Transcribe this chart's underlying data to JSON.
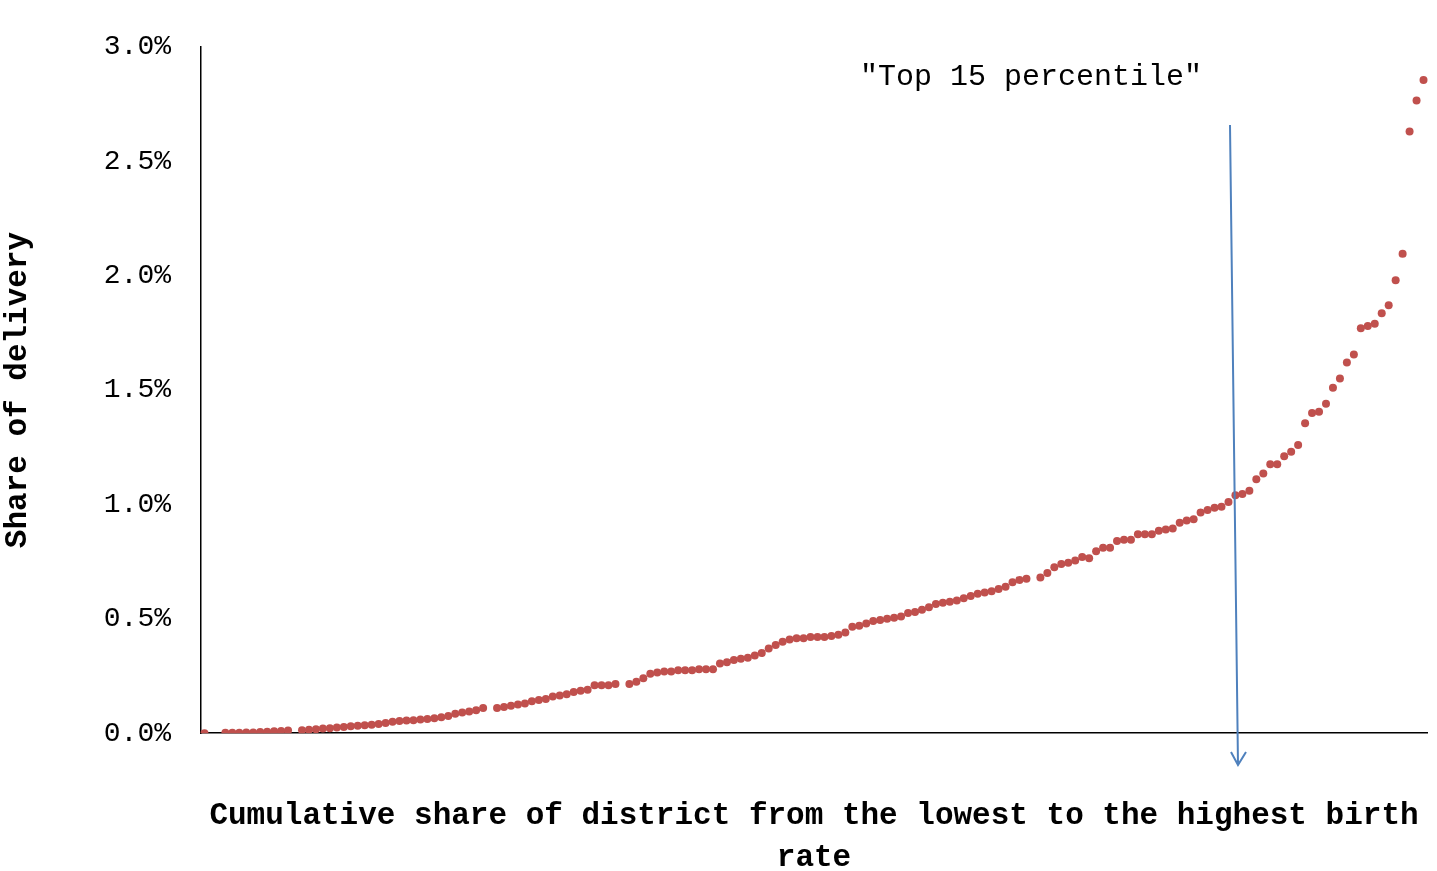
{
  "chart_data": {
    "type": "scatter",
    "xlabel": "Cumulative share of district from the lowest to the highest birth rate",
    "ylabel": "Share of delivery",
    "annotations": [
      "\"Top 15 percentile\""
    ],
    "categories": [
      null,
      null,
      null,
      null,
      null,
      null,
      null,
      null,
      null,
      null,
      null,
      null,
      null,
      null,
      null,
      null,
      null,
      null,
      null,
      null,
      null,
      null,
      null,
      null,
      null,
      null,
      null,
      null,
      null,
      null,
      null,
      null,
      null,
      null,
      null,
      null,
      null,
      null,
      null,
      null,
      null,
      null,
      null,
      null,
      null,
      null,
      null,
      null,
      null,
      null,
      null,
      null,
      null,
      null,
      null,
      null,
      null,
      null,
      null,
      null,
      null,
      null,
      null,
      null,
      null,
      null,
      null,
      null,
      null,
      null,
      null,
      null,
      null,
      null,
      null,
      null,
      null,
      null,
      null,
      null,
      null,
      null,
      null,
      null,
      null,
      null,
      null,
      null,
      null,
      null,
      null,
      null,
      null,
      null,
      null,
      null,
      null,
      null,
      null,
      null,
      null,
      null,
      null,
      null,
      null,
      null,
      null,
      null,
      null,
      null,
      null,
      null,
      null,
      null,
      null,
      null,
      null,
      null,
      null,
      null,
      null,
      null,
      null,
      null,
      null,
      null,
      null,
      null,
      null,
      null,
      null,
      null,
      null,
      null,
      null,
      null,
      null,
      null,
      null,
      null,
      null,
      null,
      null,
      null,
      null,
      null,
      null,
      null,
      null,
      null,
      null,
      null,
      null,
      null,
      null,
      null,
      null,
      null,
      null,
      null,
      null,
      null,
      null,
      null,
      null,
      null,
      null,
      null,
      null,
      null,
      null,
      null,
      null,
      null,
      null,
      null
    ],
    "series": [
      {
        "color": "#c0504d",
        "values": [
          0,
          null,
          null,
          0.002,
          0.002,
          0.002,
          0.003,
          0.003,
          0.005,
          0.006,
          0.008,
          0.01,
          0.012,
          null,
          0.013,
          0.015,
          0.017,
          0.02,
          0.022,
          0.025,
          0.027,
          0.03,
          0.033,
          0.035,
          0.037,
          0.04,
          0.045,
          0.05,
          0.053,
          0.055,
          0.057,
          0.06,
          0.062,
          0.065,
          0.07,
          0.075,
          0.085,
          0.09,
          0.095,
          0.1,
          0.11,
          null,
          0.11,
          0.115,
          0.12,
          0.125,
          0.13,
          0.14,
          0.145,
          0.15,
          0.16,
          0.165,
          0.17,
          0.18,
          0.185,
          0.19,
          0.21,
          0.21,
          0.21,
          0.215,
          null,
          0.215,
          0.225,
          0.24,
          0.26,
          0.265,
          0.27,
          0.27,
          0.275,
          0.275,
          0.275,
          0.28,
          0.28,
          0.28,
          0.305,
          0.31,
          0.32,
          0.325,
          0.33,
          0.34,
          0.35,
          0.37,
          0.385,
          0.4,
          0.41,
          0.415,
          0.415,
          0.42,
          0.42,
          0.42,
          0.425,
          0.43,
          0.44,
          0.465,
          0.47,
          0.48,
          0.49,
          0.495,
          0.5,
          0.505,
          0.51,
          0.525,
          0.53,
          0.54,
          0.55,
          0.565,
          0.57,
          0.575,
          0.58,
          0.59,
          0.6,
          0.61,
          0.615,
          0.62,
          0.63,
          0.64,
          0.66,
          0.67,
          0.675,
          null,
          0.68,
          0.7,
          0.725,
          0.74,
          0.745,
          0.755,
          0.77,
          0.765,
          0.795,
          0.81,
          0.81,
          0.84,
          0.845,
          0.845,
          0.87,
          0.87,
          0.87,
          0.885,
          0.89,
          0.895,
          0.92,
          0.93,
          0.935,
          0.965,
          0.975,
          0.985,
          0.99,
          1.01,
          1.04,
          1.045,
          1.06,
          1.11,
          1.135,
          1.175,
          1.175,
          1.21,
          1.23,
          1.26,
          1.355,
          1.4,
          1.405,
          1.44,
          1.51,
          1.55,
          1.62,
          1.655,
          1.77,
          1.78,
          1.79,
          1.835,
          1.87,
          1.98,
          2.095,
          2.63,
          2.765,
          2.855
        ]
      }
    ],
    "ylim": [
      0,
      3
    ],
    "yticks": [
      {
        "value": 0,
        "label": "0.0%"
      },
      {
        "value": 0.5,
        "label": "0.5%"
      },
      {
        "value": 1,
        "label": "1.0%"
      },
      {
        "value": 1.5,
        "label": "1.5%"
      },
      {
        "value": 2,
        "label": "2.0%"
      },
      {
        "value": 2.5,
        "label": "2.5%"
      },
      {
        "value": 3,
        "label": "3.0%"
      }
    ],
    "tick_labels": "y",
    "grid": false,
    "legend": false,
    "marker": "circle"
  }
}
